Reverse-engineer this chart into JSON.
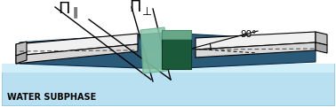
{
  "bg_color": "#ffffff",
  "water_color": "#b8e0f0",
  "water_edge": "#80c0e0",
  "trough_top": "#2a5a78",
  "trough_side": "#1a3a58",
  "barrier_top_face": "#f0f0f0",
  "barrier_front_face": "#d8d8d8",
  "barrier_right_face": "#c0c0c0",
  "glass_light_face": "#88c8a8",
  "glass_light_side": "#60a888",
  "glass_dark_face": "#1a5a3a",
  "glass_dark_side": "#0a3a22",
  "line_color": "#000000",
  "dashed_color": "#444444",
  "text_color": "#000000",
  "water_text": "WATER SUBPHASE",
  "angle_text": "90°",
  "label_parallel": "Π",
  "label_parallel_sub": "‖",
  "label_perp": "Π",
  "label_perp_sub": "⊥",
  "figsize": [
    3.78,
    1.21
  ],
  "dpi": 100
}
